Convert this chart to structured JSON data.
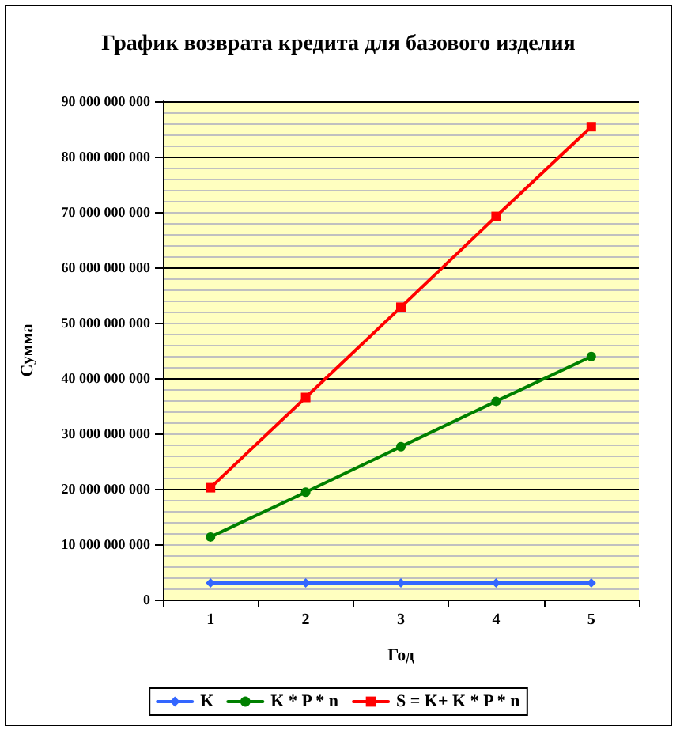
{
  "chart_data": {
    "type": "line",
    "title": "График возврата кредита для базового изделия",
    "xlabel": "Год",
    "ylabel": "Сумма",
    "categories": [
      "1",
      "2",
      "3",
      "4",
      "5"
    ],
    "series": [
      {
        "name": "K",
        "color": "#3366ff",
        "marker": "diamond",
        "values": [
          3000000000,
          3000000000,
          3000000000,
          3000000000,
          3000000000
        ]
      },
      {
        "name": "K * P * n",
        "color": "#008000",
        "marker": "circle",
        "values": [
          11300000000,
          19400000000,
          27600000000,
          35800000000,
          43900000000
        ]
      },
      {
        "name": "S = K+ K * P * n",
        "color": "#ff0000",
        "marker": "square",
        "values": [
          20200000000,
          36500000000,
          52800000000,
          69200000000,
          85400000000
        ]
      }
    ],
    "ylim": [
      0,
      90000000000
    ],
    "yticks": [
      {
        "value": 0,
        "label": "0"
      },
      {
        "value": 10000000000,
        "label": "10 000 000 000"
      },
      {
        "value": 20000000000,
        "label": "20 000 000 000"
      },
      {
        "value": 30000000000,
        "label": "30 000 000 000"
      },
      {
        "value": 40000000000,
        "label": "40 000 000 000"
      },
      {
        "value": 50000000000,
        "label": "50 000 000 000"
      },
      {
        "value": 60000000000,
        "label": "60 000 000 000"
      },
      {
        "value": 70000000000,
        "label": "70 000 000 000"
      },
      {
        "value": 80000000000,
        "label": "80 000 000 000"
      },
      {
        "value": 90000000000,
        "label": "90 000 000 000"
      }
    ],
    "grid": "y",
    "legend": "bottom",
    "line_style": "solid"
  }
}
